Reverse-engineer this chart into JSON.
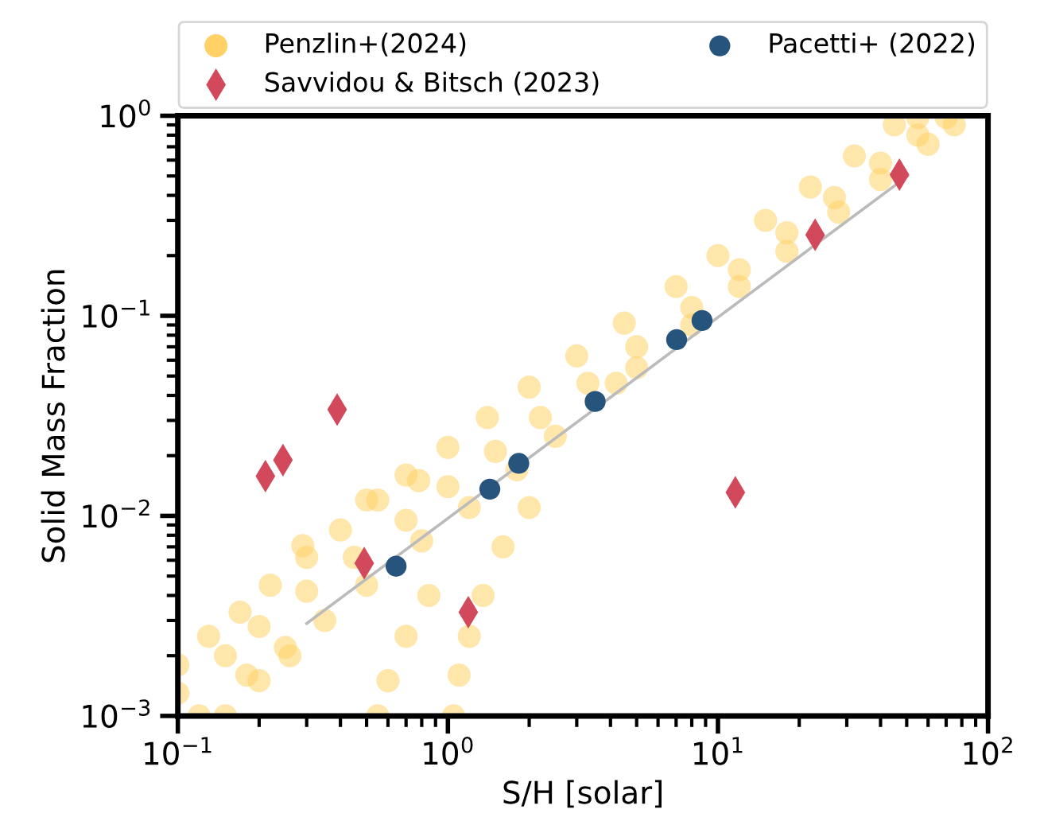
{
  "chart_data": {
    "type": "scatter",
    "xlabel": "S/H [solar]",
    "ylabel": "Solid Mass Fraction",
    "log": "xy",
    "grid": false,
    "legend": "top",
    "xlim": [
      0.1,
      100
    ],
    "ylim": [
      0.001,
      1
    ],
    "xticks": [
      {
        "value": 0.1,
        "label": "10$^{−1}$"
      },
      {
        "value": 1,
        "label": "10$^{0}$"
      },
      {
        "value": 10,
        "label": "10$^{1}$"
      },
      {
        "value": 100,
        "label": "10$^{2}$"
      }
    ],
    "yticks": [
      {
        "value": 0.001,
        "label": "10$^{−3}$"
      },
      {
        "value": 0.01,
        "label": "10$^{−2}$"
      },
      {
        "value": 0.1,
        "label": "10$^{−1}$"
      },
      {
        "value": 1,
        "label": "10$^{0}$"
      }
    ],
    "series": [
      {
        "name": "Penzlin+(2024)",
        "color": "#ffd166",
        "marker": "circle",
        "x": [
          0.1,
          0.13,
          0.17,
          0.22,
          0.3,
          0.4,
          0.55,
          0.7,
          1,
          1.4,
          2,
          3,
          4.5,
          7,
          10,
          15,
          22,
          32,
          45,
          55,
          0.1,
          0.15,
          0.2,
          0.3,
          0.45,
          0.7,
          1,
          1.5,
          2.2,
          3.3,
          5,
          8,
          12,
          18,
          27,
          40,
          55,
          70,
          0.12,
          0.18,
          0.25,
          0.35,
          0.5,
          0.8,
          1.2,
          1.8,
          2.5,
          4.2,
          5,
          8,
          12,
          18,
          28,
          40,
          60,
          75,
          0.55,
          0.6,
          0.7,
          0.85,
          1.05,
          1.1,
          1.2,
          1.35,
          1.6,
          2.0,
          0.15,
          0.2,
          0.26,
          0.29,
          0.5,
          0.78
        ],
        "values": [
          0.0018,
          0.0025,
          0.0033,
          0.0045,
          0.0062,
          0.0085,
          0.012,
          0.016,
          0.022,
          0.031,
          0.044,
          0.063,
          0.092,
          0.14,
          0.2,
          0.3,
          0.44,
          0.63,
          0.9,
          0.98,
          0.0013,
          0.002,
          0.0028,
          0.0042,
          0.0062,
          0.0095,
          0.014,
          0.021,
          0.031,
          0.046,
          0.07,
          0.11,
          0.17,
          0.26,
          0.39,
          0.58,
          0.8,
          0.98,
          0.001,
          0.0016,
          0.0022,
          0.003,
          0.0045,
          0.0075,
          0.011,
          0.017,
          0.025,
          0.046,
          0.055,
          0.09,
          0.14,
          0.21,
          0.33,
          0.48,
          0.72,
          0.9,
          0.001,
          0.0015,
          0.0025,
          0.004,
          0.001,
          0.0016,
          0.0025,
          0.004,
          0.007,
          0.011,
          0.001,
          0.0015,
          0.002,
          0.0071,
          0.012,
          0.015
        ]
      },
      {
        "name": "Savvidou & Bitsch (2023)",
        "color": "#d1495b",
        "marker": "diamond",
        "x": [
          0.211,
          0.245,
          0.389,
          0.49,
          1.19,
          11.6,
          22.9,
          47
        ],
        "values": [
          0.0158,
          0.019,
          0.034,
          0.0058,
          0.0033,
          0.0131,
          0.254,
          0.508
        ]
      },
      {
        "name": "Pacetti+ (2022)",
        "color": "#26547c",
        "marker": "circle",
        "x": [
          0.643,
          1.43,
          1.83,
          3.51,
          7.03,
          8.73
        ],
        "values": [
          0.0056,
          0.0136,
          0.0183,
          0.0373,
          0.076,
          0.0947
        ]
      },
      {
        "type": "line",
        "color": "#bbbbbb",
        "x": [
          0.3,
          50.4
        ],
        "values": [
          0.0029,
          0.5
        ]
      }
    ]
  }
}
